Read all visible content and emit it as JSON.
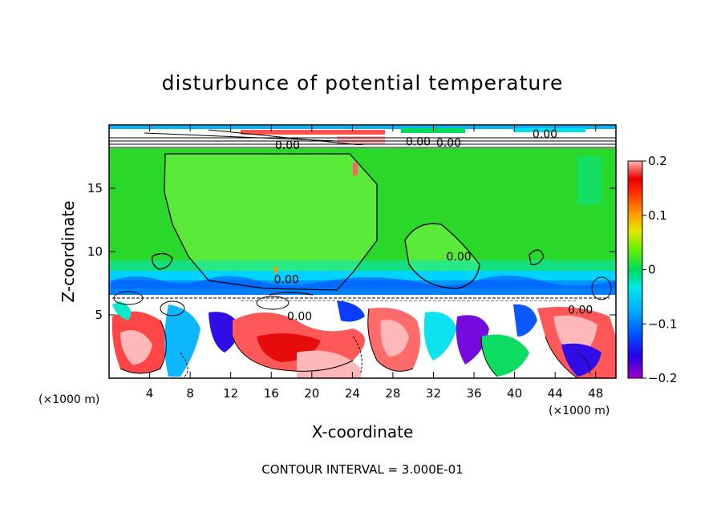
{
  "chart_data": {
    "type": "heatmap",
    "title": "disturbunce of potential temperature",
    "xlabel": "X-coordinate",
    "ylabel": "Z-coordinate",
    "x_unit_left": "(×1000 m)",
    "x_unit_right": "(×1000 m)",
    "footer": "CONTOUR INTERVAL = 3.000E-01",
    "xlim": [
      0,
      50
    ],
    "ylim": [
      0,
      20
    ],
    "x_ticks": [
      4,
      8,
      12,
      16,
      20,
      24,
      28,
      32,
      36,
      40,
      44,
      48
    ],
    "y_ticks": [
      5,
      10,
      15
    ],
    "colorbar": {
      "range": [
        -0.2,
        0.2
      ],
      "tick_values": [
        0.2,
        0.1,
        0,
        -0.1,
        -0.2
      ],
      "tick_labels": [
        "0.2",
        "0.1",
        "0",
        "−0.1",
        "−0.2"
      ],
      "colors": [
        "#a000c8",
        "#6e00dc",
        "#2800e6",
        "#0032ff",
        "#0082ff",
        "#00b4ff",
        "#00e1f0",
        "#00f0b4",
        "#00dc5a",
        "#32e632",
        "#6ef000",
        "#b4f000",
        "#e6e600",
        "#ffc800",
        "#ff9600",
        "#ff6400",
        "#ff3200",
        "#e60000",
        "#ff7878",
        "#ffb4b4"
      ]
    },
    "contour_labels": [
      {
        "text": "0.00",
        "x": 17.5,
        "y": 7.5
      },
      {
        "text": "0.00",
        "x": 34.5,
        "y": 9.3
      },
      {
        "text": "0.00",
        "x": 18.8,
        "y": 4.6
      },
      {
        "text": "0.00",
        "x": 46.5,
        "y": 5.1
      },
      {
        "text": "0.00",
        "x": 17.6,
        "y": 18.1
      },
      {
        "text": "0.00",
        "x": 30.5,
        "y": 18.4
      },
      {
        "text": "0.00",
        "x": 33.5,
        "y": 18.3
      },
      {
        "text": "0.00",
        "x": 43.0,
        "y": 19.0
      }
    ]
  }
}
